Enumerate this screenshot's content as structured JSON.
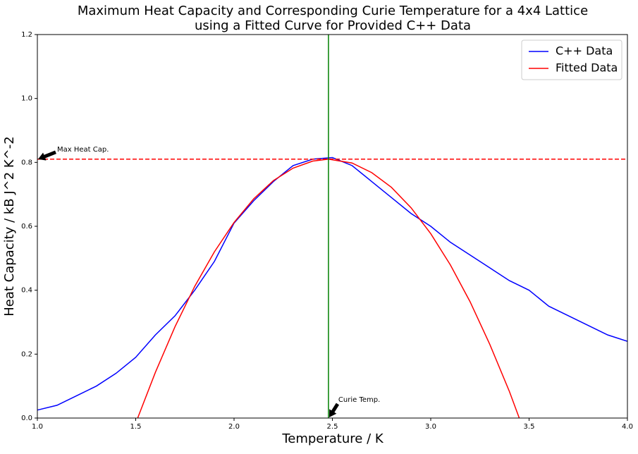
{
  "chart_data": {
    "type": "line",
    "title": [
      "Maximum Heat Capacity and Corresponding Curie Temperature for a 4x4 Lattice",
      "using a Fitted Curve for Provided C++ Data"
    ],
    "x_label": "Temperature / K",
    "y_label": "Heat Capacity / kB J^2 K^-2",
    "xlim": [
      1.0,
      4.0
    ],
    "ylim": [
      0.0,
      1.2
    ],
    "xticks": [
      {
        "value": 1.0,
        "label": "1.0"
      },
      1.5,
      {
        "value": 2.0,
        "label": "2.0"
      },
      2.5,
      {
        "value": 3.0,
        "label": "3.0"
      },
      3.5,
      {
        "value": 4.0,
        "label": "4.0"
      }
    ],
    "yticks": [
      {
        "value": 0.0,
        "label": "0.0"
      },
      0.2,
      0.4,
      0.6,
      0.8,
      {
        "value": 1.0,
        "label": "1.0"
      },
      1.2
    ],
    "legend": "upper right",
    "series": [
      {
        "name": "C++ Data",
        "color": "#0000ff",
        "x": [
          1.0,
          1.1,
          1.2,
          1.3,
          1.4,
          1.5,
          1.6,
          1.7,
          1.8,
          1.9,
          2.0,
          2.1,
          2.2,
          2.3,
          2.4,
          2.5,
          2.6,
          2.7,
          2.8,
          2.9,
          3.0,
          3.1,
          3.2,
          3.3,
          3.4,
          3.5,
          3.6,
          3.7,
          3.8,
          3.9,
          4.0
        ],
        "values": [
          0.025,
          0.04,
          0.07,
          0.1,
          0.14,
          0.19,
          0.26,
          0.32,
          0.4,
          0.49,
          0.61,
          0.68,
          0.74,
          0.79,
          0.81,
          0.815,
          0.79,
          0.74,
          0.69,
          0.64,
          0.6,
          0.55,
          0.51,
          0.47,
          0.43,
          0.4,
          0.35,
          0.32,
          0.29,
          0.26,
          0.24
        ]
      },
      {
        "name": "Fitted Data",
        "color": "#ff0000",
        "x": [
          1.51,
          1.6,
          1.7,
          1.8,
          1.9,
          2.0,
          2.1,
          2.2,
          2.3,
          2.4,
          2.48,
          2.6,
          2.7,
          2.8,
          2.9,
          3.0,
          3.1,
          3.2,
          3.3,
          3.4,
          3.45
        ],
        "values": [
          0.0,
          0.143,
          0.286,
          0.412,
          0.52,
          0.612,
          0.686,
          0.743,
          0.782,
          0.804,
          0.81,
          0.798,
          0.768,
          0.722,
          0.658,
          0.577,
          0.479,
          0.364,
          0.231,
          0.083,
          0.0
        ]
      }
    ],
    "hline": {
      "value": 0.81,
      "color": "#ff0000",
      "style": "dashed"
    },
    "vline": {
      "value": 2.48,
      "color": "#008000"
    },
    "annotations": [
      "Max Heat Cap.",
      "Curie Temp."
    ]
  }
}
